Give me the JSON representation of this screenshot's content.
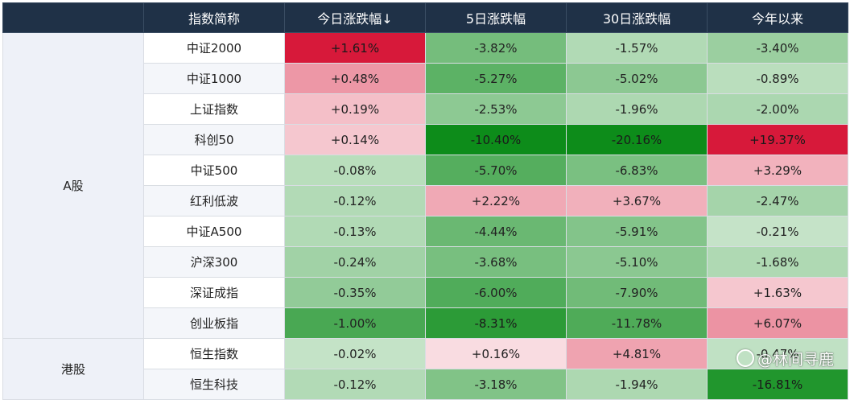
{
  "chart_data": {
    "type": "table",
    "headers": [
      "",
      "指数简称",
      "今日涨跌幅↓",
      "5日涨跌幅",
      "30日涨跌幅",
      "今年以来"
    ],
    "groups": [
      {
        "label": "A股",
        "rows": [
          {
            "name": "中证2000",
            "values": [
              1.61,
              -3.82,
              -1.57,
              -3.4
            ],
            "display": [
              "+1.61%",
              "-3.82%",
              "-1.57%",
              "-3.40%"
            ]
          },
          {
            "name": "中证1000",
            "values": [
              0.48,
              -5.27,
              -5.02,
              -0.89
            ],
            "display": [
              "+0.48%",
              "-5.27%",
              "-5.02%",
              "-0.89%"
            ]
          },
          {
            "name": "上证指数",
            "values": [
              0.19,
              -2.53,
              -1.96,
              -2.0
            ],
            "display": [
              "+0.19%",
              "-2.53%",
              "-1.96%",
              "-2.00%"
            ]
          },
          {
            "name": "科创50",
            "values": [
              0.14,
              -10.4,
              -20.16,
              19.37
            ],
            "display": [
              "+0.14%",
              "-10.40%",
              "-20.16%",
              "+19.37%"
            ]
          },
          {
            "name": "中证500",
            "values": [
              -0.08,
              -5.7,
              -6.83,
              3.29
            ],
            "display": [
              "-0.08%",
              "-5.70%",
              "-6.83%",
              "+3.29%"
            ]
          },
          {
            "name": "红利低波",
            "values": [
              -0.12,
              2.22,
              3.67,
              -2.47
            ],
            "display": [
              "-0.12%",
              "+2.22%",
              "+3.67%",
              "-2.47%"
            ]
          },
          {
            "name": "中证A500",
            "values": [
              -0.13,
              -4.44,
              -5.91,
              -0.21
            ],
            "display": [
              "-0.13%",
              "-4.44%",
              "-5.91%",
              "-0.21%"
            ]
          },
          {
            "name": "沪深300",
            "values": [
              -0.24,
              -3.68,
              -5.1,
              -1.68
            ],
            "display": [
              "-0.24%",
              "-3.68%",
              "-5.10%",
              "-1.68%"
            ]
          },
          {
            "name": "深证成指",
            "values": [
              -0.35,
              -6.0,
              -7.9,
              1.63
            ],
            "display": [
              "-0.35%",
              "-6.00%",
              "-7.90%",
              "+1.63%"
            ]
          },
          {
            "name": "创业板指",
            "values": [
              -1.0,
              -8.31,
              -11.78,
              6.07
            ],
            "display": [
              "-1.00%",
              "-8.31%",
              "-11.78%",
              "+6.07%"
            ]
          }
        ]
      },
      {
        "label": "港股",
        "rows": [
          {
            "name": "恒生指数",
            "values": [
              -0.02,
              0.16,
              4.81,
              -0.47
            ],
            "display": [
              "-0.02%",
              "+0.16%",
              "+4.81%",
              "-0.47%"
            ]
          },
          {
            "name": "恒生科技",
            "values": [
              -0.12,
              -3.18,
              -1.94,
              -16.81
            ],
            "display": [
              "-0.12%",
              "-3.18%",
              "-1.94%",
              "-16.81%"
            ]
          }
        ]
      }
    ],
    "colors": {
      "positive": "#d7193a",
      "negative": "#0d8c1a",
      "neutral": "#ffffff",
      "header_bg": "#1f3147",
      "header_text": "#ffffff"
    }
  },
  "watermark": {
    "text": "@林间寻鹿",
    "icon": "wechat-logo-icon"
  }
}
